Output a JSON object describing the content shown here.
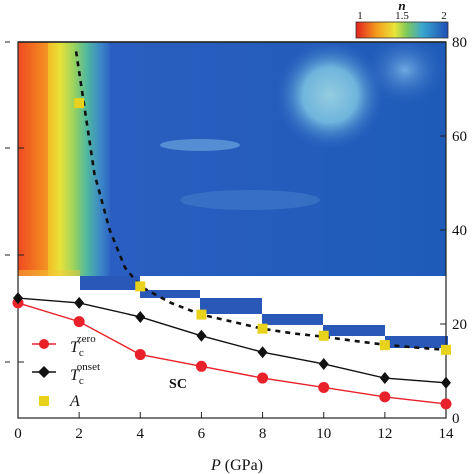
{
  "chart_data": {
    "type": "scatter",
    "x_label_prefix": "P",
    "x_label_unit": "(GPa)",
    "x_ticks": [
      "0",
      "2",
      "4",
      "6",
      "8",
      "10",
      "12",
      "14"
    ],
    "xlim": [
      0,
      14
    ],
    "right_ticks": [
      "0",
      "20",
      "40",
      "60",
      "80"
    ],
    "right_ylim": [
      0,
      80
    ],
    "colorbar": {
      "label": "n",
      "ticks": [
        "1",
        "1.5",
        "2"
      ],
      "range": [
        1,
        2
      ]
    },
    "region_label": "SC",
    "series": [
      {
        "name": "Tc zero",
        "label_main": "T",
        "label_sub": "c",
        "label_sup": "zero",
        "color": "#e8212a",
        "marker": "circle",
        "x": [
          0,
          2,
          4,
          6,
          8,
          10,
          12,
          14
        ],
        "y": [
          24.5,
          20.5,
          13.5,
          11,
          8.5,
          6.5,
          4.5,
          3
        ]
      },
      {
        "name": "Tc onset",
        "label_main": "T",
        "label_sub": "c",
        "label_sup": "onset",
        "color": "#111111",
        "marker": "diamond",
        "x": [
          0,
          2,
          4,
          6,
          8,
          10,
          12,
          14
        ],
        "y": [
          25.5,
          24.5,
          21.5,
          17.5,
          14,
          11.5,
          8.5,
          7.5
        ]
      },
      {
        "name": "A",
        "label_main": "A",
        "color": "#e8d21c",
        "marker": "square",
        "x": [
          2,
          4,
          6,
          8,
          10,
          12,
          14
        ],
        "y": [
          67,
          28,
          22,
          19,
          17.5,
          15.5,
          14.5
        ]
      }
    ],
    "dashed_fit": {
      "color": "#111111",
      "x": [
        1.9,
        2.5,
        3,
        3.5,
        4,
        5,
        6,
        7,
        8,
        9,
        10,
        11,
        12,
        13,
        14
      ],
      "y": [
        78,
        52,
        40,
        32,
        28,
        24.5,
        22,
        20.5,
        19,
        18,
        17.3,
        16.4,
        15.6,
        15,
        14.5
      ]
    }
  }
}
